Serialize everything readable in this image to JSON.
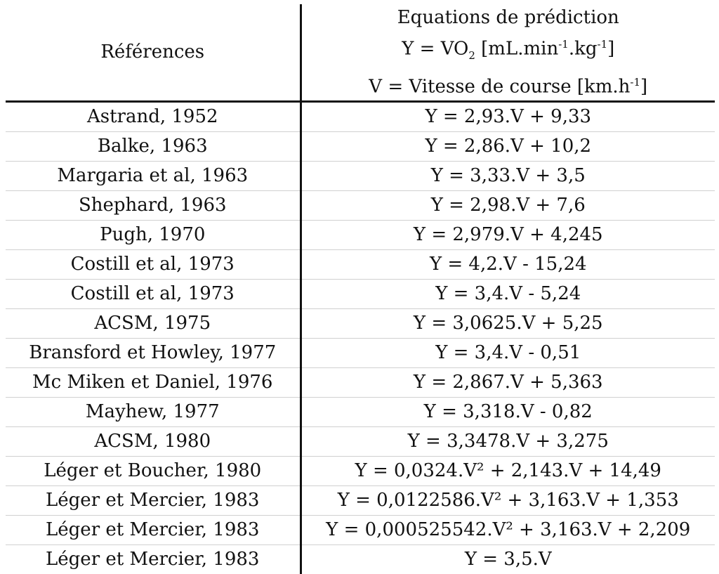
{
  "header": {
    "references": "Références",
    "equations_line1": "Equations de prédiction",
    "equations_line2_prefix": "Y = VO",
    "equations_line2_sub": "2",
    "equations_line2_mid": " [mL.min",
    "equations_line2_sup1": "-1",
    "equations_line2_mid2": ".kg",
    "equations_line2_sup2": "-1",
    "equations_line2_end": "]",
    "equations_line3_prefix": "V = Vitesse de course [km.h",
    "equations_line3_sup": "-1",
    "equations_line3_end": "]"
  },
  "rows": [
    {
      "reference": "Astrand, 1952",
      "equation": "Y = 2,93.V + 9,33"
    },
    {
      "reference": "Balke, 1963",
      "equation": "Y = 2,86.V + 10,2"
    },
    {
      "reference": "Margaria et al, 1963",
      "equation": "Y = 3,33.V + 3,5"
    },
    {
      "reference": "Shephard, 1963",
      "equation": "Y = 2,98.V + 7,6"
    },
    {
      "reference": "Pugh, 1970",
      "equation": "Y = 2,979.V + 4,245"
    },
    {
      "reference": "Costill et al, 1973",
      "equation": "Y = 4,2.V - 15,24"
    },
    {
      "reference": "Costill et al, 1973",
      "equation": "Y = 3,4.V - 5,24"
    },
    {
      "reference": "ACSM, 1975",
      "equation": "Y = 3,0625.V + 5,25"
    },
    {
      "reference": "Bransford et Howley, 1977",
      "equation": "Y = 3,4.V - 0,51"
    },
    {
      "reference": "Mc Miken et Daniel, 1976",
      "equation": "Y = 2,867.V + 5,363"
    },
    {
      "reference": "Mayhew, 1977",
      "equation": "Y = 3,318.V - 0,82"
    },
    {
      "reference": "ACSM, 1980",
      "equation": "Y = 3,3478.V + 3,275"
    },
    {
      "reference": "Léger et Boucher, 1980",
      "equation": "Y = 0,0324.V² + 2,143.V + 14,49"
    },
    {
      "reference": "Léger et Mercier, 1983",
      "equation": "Y = 0,0122586.V² + 3,163.V + 1,353"
    },
    {
      "reference": "Léger et Mercier, 1983",
      "equation": "Y = 0,000525542.V² + 3,163.V + 2,209"
    },
    {
      "reference": "Léger et Mercier, 1983",
      "equation": "Y = 3,5.V"
    }
  ]
}
